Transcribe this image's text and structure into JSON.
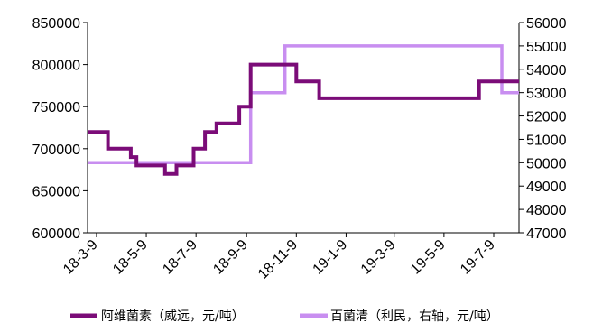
{
  "chart_data": {
    "type": "line",
    "title": "",
    "xlabel": "",
    "ylabel": "",
    "x_labels": [
      "18-3-9",
      "18-5-9",
      "18-7-9",
      "18-9-9",
      "18-11-9",
      "19-1-9",
      "19-3-9",
      "19-5-9",
      "19-7-9"
    ],
    "y_left": {
      "ylim": [
        600000,
        850000
      ],
      "ticks": [
        "600000",
        "650000",
        "700000",
        "750000",
        "800000",
        "850000"
      ]
    },
    "y_right": {
      "ylim": [
        47000,
        56000
      ],
      "ticks": [
        "47000",
        "48000",
        "49000",
        "50000",
        "51000",
        "52000",
        "53000",
        "54000",
        "55000",
        "56000"
      ]
    },
    "grid": false,
    "legend_position": "bottom",
    "series": [
      {
        "name": "阿维菌素（威远，元/吨）",
        "axis": "left",
        "color": "#7b0c78",
        "step": true,
        "points": [
          [
            "2018-02-26",
            720000
          ],
          [
            "2018-03-23",
            700000
          ],
          [
            "2018-04-20",
            690000
          ],
          [
            "2018-04-27",
            680000
          ],
          [
            "2018-06-01",
            670000
          ],
          [
            "2018-06-15",
            680000
          ],
          [
            "2018-07-06",
            700000
          ],
          [
            "2018-07-20",
            720000
          ],
          [
            "2018-08-03",
            730000
          ],
          [
            "2018-08-31",
            750000
          ],
          [
            "2018-09-14",
            800000
          ],
          [
            "2018-11-09",
            780000
          ],
          [
            "2018-12-07",
            760000
          ],
          [
            "2019-06-21",
            780000
          ],
          [
            "2019-08-09",
            780000
          ]
        ]
      },
      {
        "name": "百菌清（利民，右轴，元/吨）",
        "axis": "right",
        "color": "#c88ef0",
        "step": true,
        "points": [
          [
            "2018-02-26",
            50000
          ],
          [
            "2018-09-14",
            53000
          ],
          [
            "2018-10-26",
            55000
          ],
          [
            "2019-07-19",
            53000
          ],
          [
            "2019-08-09",
            53000
          ]
        ]
      }
    ]
  }
}
